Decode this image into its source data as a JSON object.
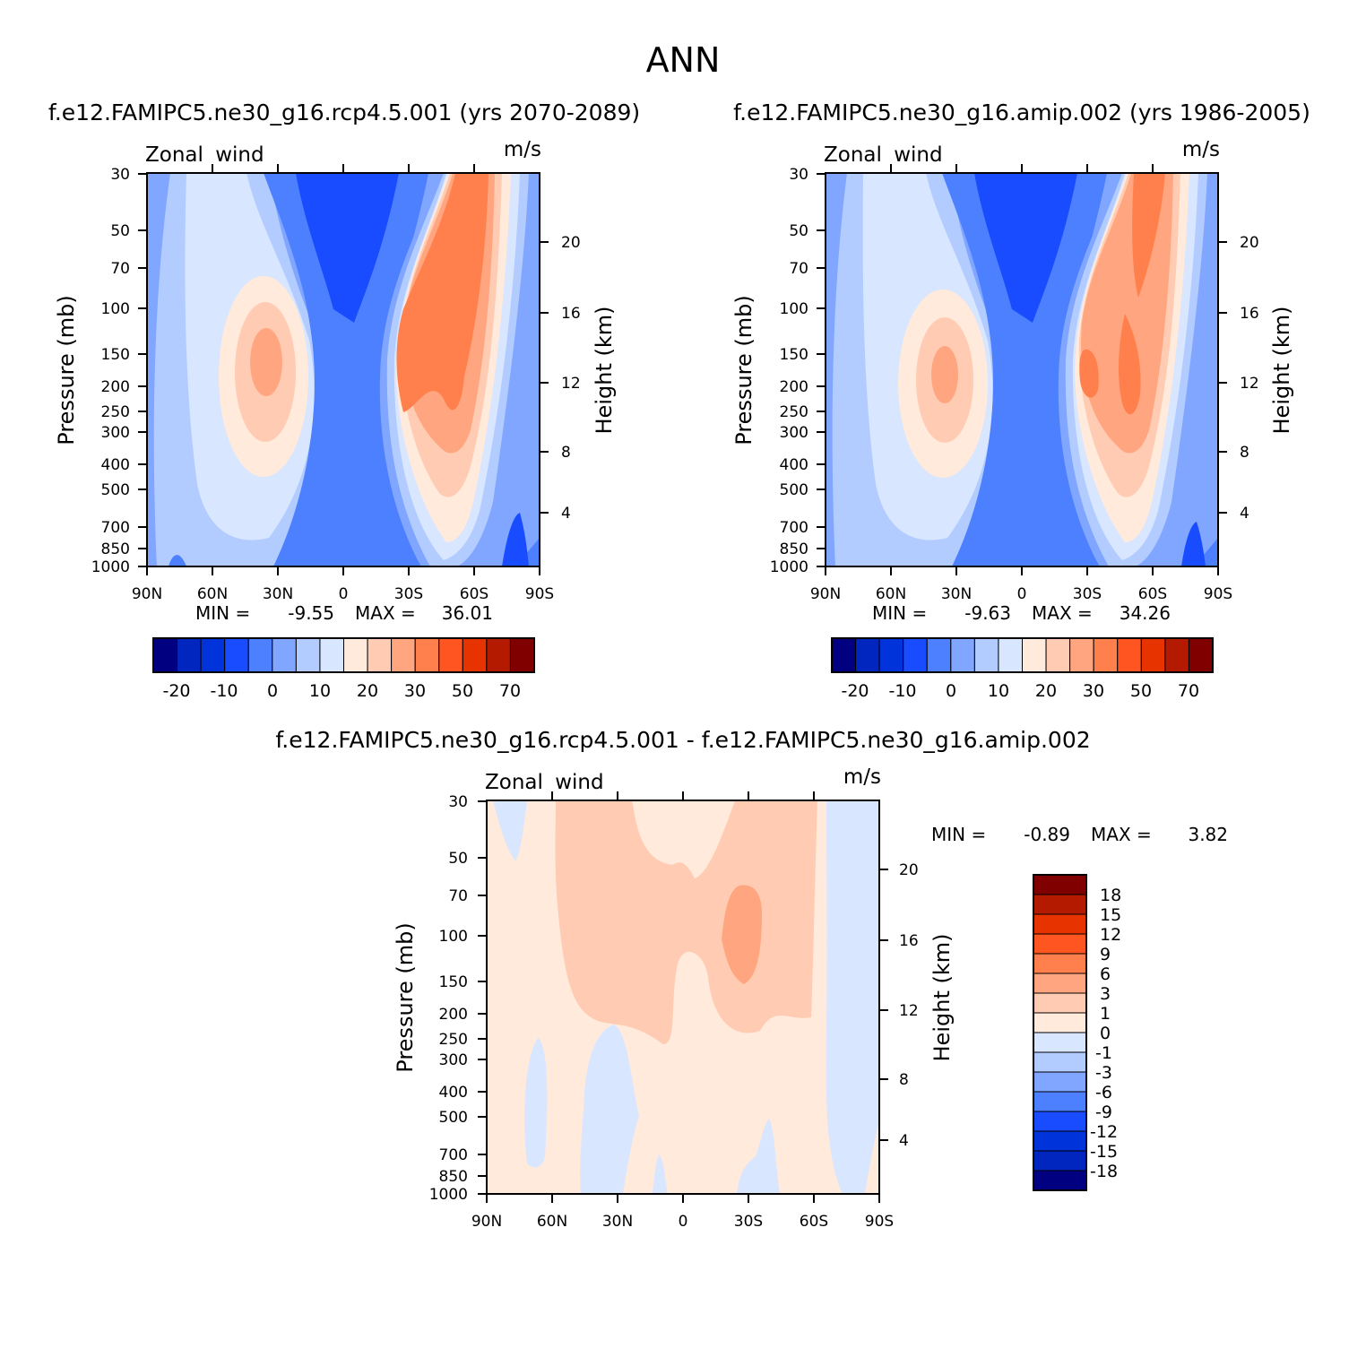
{
  "figure": {
    "title": "ANN"
  },
  "contour_colors": {
    "abs": [
      "#000080",
      "#0026bf",
      "#0033d9",
      "#1a4cff",
      "#4d80ff",
      "#80a6ff",
      "#b3ccff",
      "#d9e6ff",
      "#ffeadb",
      "#ffccb3",
      "#ffa680",
      "#ff804d",
      "#ff5520",
      "#e63300",
      "#b31a00",
      "#800000"
    ],
    "diff": [
      "#000080",
      "#0026bf",
      "#0033d9",
      "#1a4cff",
      "#4d80ff",
      "#80a6ff",
      "#b3ccff",
      "#d9e6ff",
      "#ffeadb",
      "#ffccb3",
      "#ffa680",
      "#ff804d",
      "#ff5520",
      "#e63300",
      "#b31a00",
      "#800000"
    ]
  },
  "chart_data": [
    {
      "type": "heatmap",
      "title": "f.e12.FAMIPC5.ne30_g16.rcp4.5.001 (yrs 2070-2089)",
      "left_string": "Zonal wind",
      "right_string": "m/s",
      "ylabel": "Pressure (mb)",
      "y2label": "Height (km)",
      "y_axis": "log pressure",
      "ylim": [
        1000,
        30
      ],
      "xlim": [
        "90N",
        "90S"
      ],
      "x_ticks": [
        "90N",
        "60N",
        "30N",
        "0",
        "30S",
        "60S",
        "90S"
      ],
      "y_ticks": [
        30,
        50,
        70,
        100,
        150,
        200,
        250,
        300,
        400,
        500,
        700,
        850,
        1000
      ],
      "y2_ticks": [
        20,
        16,
        12,
        8,
        4
      ],
      "min_label": "MIN =",
      "min_value": "-9.55",
      "max_label": "MAX =",
      "max_value": "36.01",
      "colorbar_labels": [
        "-20",
        "-10",
        "0",
        "10",
        "20",
        "30",
        "50",
        "70"
      ],
      "features": [
        {
          "kind": "easterly_core",
          "lat_center": "8N",
          "pressure_top": 30,
          "pressure_bottom": 1000,
          "min": -9.55
        },
        {
          "kind": "westerly_jet",
          "lat": "35N",
          "pressure": 170,
          "max": 22
        },
        {
          "kind": "westerly_jet",
          "lat": "45S",
          "pressure": 170,
          "max": 36.01
        }
      ]
    },
    {
      "type": "heatmap",
      "title": "f.e12.FAMIPC5.ne30_g16.amip.002 (yrs 1986-2005)",
      "left_string": "Zonal wind",
      "right_string": "m/s",
      "ylabel": "Pressure (mb)",
      "y2label": "Height (km)",
      "y_axis": "log pressure",
      "ylim": [
        1000,
        30
      ],
      "xlim": [
        "90N",
        "90S"
      ],
      "x_ticks": [
        "90N",
        "60N",
        "30N",
        "0",
        "30S",
        "60S",
        "90S"
      ],
      "y_ticks": [
        30,
        50,
        70,
        100,
        150,
        200,
        250,
        300,
        400,
        500,
        700,
        850,
        1000
      ],
      "y2_ticks": [
        20,
        16,
        12,
        8,
        4
      ],
      "min_label": "MIN =",
      "min_value": "-9.63",
      "max_label": "MAX =",
      "max_value": "34.26",
      "colorbar_labels": [
        "-20",
        "-10",
        "0",
        "10",
        "20",
        "30",
        "50",
        "70"
      ],
      "features": [
        {
          "kind": "easterly_core",
          "lat_center": "8N",
          "pressure_top": 30,
          "pressure_bottom": 1000,
          "min": -9.63
        },
        {
          "kind": "westerly_jet",
          "lat": "35N",
          "pressure": 180,
          "max": 21
        },
        {
          "kind": "westerly_jet",
          "lat": "45S",
          "pressure": 180,
          "max": 34.26
        }
      ]
    },
    {
      "type": "heatmap",
      "title": "f.e12.FAMIPC5.ne30_g16.rcp4.5.001 - f.e12.FAMIPC5.ne30_g16.amip.002",
      "left_string": "Zonal wind",
      "right_string": "m/s",
      "ylabel": "Pressure (mb)",
      "y2label": "Height (km)",
      "y_axis": "log pressure",
      "ylim": [
        1000,
        30
      ],
      "xlim": [
        "90N",
        "90S"
      ],
      "x_ticks": [
        "90N",
        "60N",
        "30N",
        "0",
        "30S",
        "60S",
        "90S"
      ],
      "y_ticks": [
        30,
        50,
        70,
        100,
        150,
        200,
        250,
        300,
        400,
        500,
        700,
        850,
        1000
      ],
      "y2_ticks": [
        20,
        16,
        12,
        8,
        4
      ],
      "min_label": "MIN =",
      "min_value": "-0.89",
      "max_label": "MAX =",
      "max_value": "3.82",
      "colorbar_labels": [
        "18",
        "15",
        "12",
        "9",
        "6",
        "3",
        "1",
        "0",
        "-1",
        "-3",
        "-6",
        "-9",
        "-12",
        "-15",
        "-18"
      ],
      "features": [
        {
          "kind": "positive_region",
          "lat": "25S",
          "pressure": 100,
          "max": 3.82
        },
        {
          "kind": "negative_region",
          "lat": "80S",
          "pressure_top": 30,
          "pressure_bottom": 1000,
          "min": -0.89
        }
      ]
    }
  ]
}
